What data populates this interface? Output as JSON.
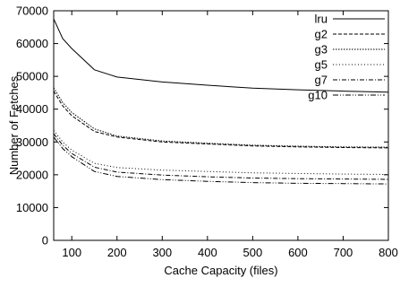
{
  "chart_data": {
    "type": "line",
    "title": "",
    "xlabel": "Cache Capacity (files)",
    "ylabel": "Number of Fetches",
    "xlim": [
      60,
      800
    ],
    "ylim": [
      0,
      70000
    ],
    "x_ticks": [
      100,
      200,
      300,
      400,
      500,
      600,
      700,
      800
    ],
    "y_ticks": [
      0,
      10000,
      20000,
      30000,
      40000,
      50000,
      60000,
      70000
    ],
    "x_tick_labels": [
      "100",
      "200",
      "300",
      "400",
      "500",
      "600",
      "700",
      "800"
    ],
    "y_tick_labels": [
      "0",
      "10000",
      "20000",
      "30000",
      "40000",
      "50000",
      "60000",
      "70000"
    ],
    "grid": false,
    "legend_position": "top-right",
    "series": [
      {
        "name": "lru",
        "dash": "solid",
        "x": [
          60,
          80,
          100,
          150,
          200,
          300,
          400,
          500,
          600,
          700,
          800
        ],
        "y": [
          67500,
          61500,
          58500,
          52000,
          49800,
          48300,
          47300,
          46400,
          45900,
          45500,
          45200
        ]
      },
      {
        "name": "g2",
        "dash": "dashed",
        "x": [
          60,
          80,
          100,
          150,
          200,
          300,
          400,
          500,
          600,
          700,
          800
        ],
        "y": [
          45500,
          41000,
          38000,
          33200,
          31500,
          30000,
          29400,
          28800,
          28500,
          28300,
          28200
        ]
      },
      {
        "name": "g3",
        "dash": "dotted",
        "x": [
          60,
          80,
          100,
          150,
          200,
          300,
          400,
          500,
          600,
          700,
          800
        ],
        "y": [
          46500,
          42000,
          39000,
          34000,
          31800,
          30300,
          29600,
          29000,
          28700,
          28500,
          28400
        ]
      },
      {
        "name": "g5",
        "dash": "fine-dotted",
        "x": [
          60,
          80,
          100,
          150,
          200,
          300,
          400,
          500,
          600,
          700,
          800
        ],
        "y": [
          33500,
          30000,
          27500,
          23500,
          22200,
          21400,
          21000,
          20600,
          20400,
          20200,
          20100
        ]
      },
      {
        "name": "g7",
        "dash": "dash-dot",
        "x": [
          60,
          80,
          100,
          150,
          200,
          300,
          400,
          500,
          600,
          700,
          800
        ],
        "y": [
          32500,
          29000,
          26500,
          22300,
          20800,
          19900,
          19400,
          19000,
          18800,
          18700,
          18600
        ]
      },
      {
        "name": "g10",
        "dash": "dash-dot-dot",
        "x": [
          60,
          80,
          100,
          150,
          200,
          300,
          400,
          500,
          600,
          700,
          800
        ],
        "y": [
          31500,
          28000,
          25500,
          21000,
          19500,
          18500,
          18000,
          17600,
          17400,
          17300,
          17200
        ]
      }
    ]
  }
}
